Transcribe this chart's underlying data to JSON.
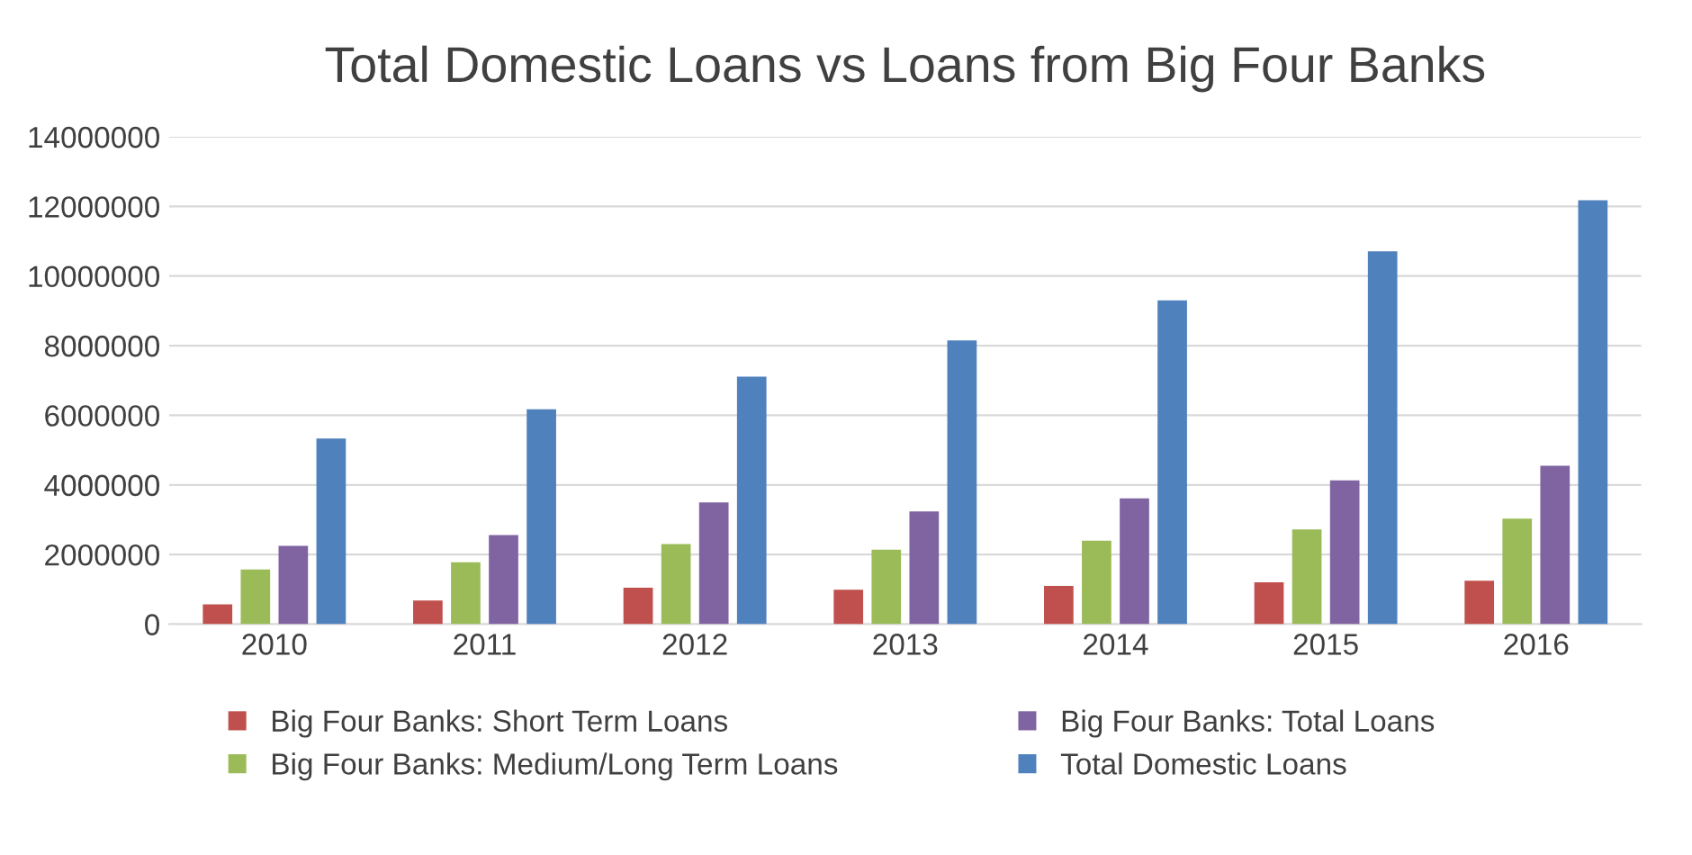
{
  "chart_data": {
    "type": "bar",
    "title": "Total Domestic Loans vs Loans from Big Four Banks",
    "categories": [
      "2010",
      "2011",
      "2012",
      "2013",
      "2014",
      "2015",
      "2016"
    ],
    "series": [
      {
        "name": "Big Four Banks: Short Term Loans",
        "color": "#c0504d",
        "values": [
          570000,
          680000,
          1050000,
          990000,
          1100000,
          1200000,
          1250000
        ]
      },
      {
        "name": "Big Four Banks: Medium/Long Term Loans",
        "color": "#9bbb59",
        "values": [
          1570000,
          1780000,
          2300000,
          2140000,
          2400000,
          2720000,
          3030000
        ]
      },
      {
        "name": "Big Four Banks: Total Loans",
        "color": "#8064a2",
        "values": [
          2250000,
          2560000,
          3500000,
          3240000,
          3610000,
          4130000,
          4550000
        ]
      },
      {
        "name": "Total Domestic Loans",
        "color": "#4f81bd",
        "values": [
          5330000,
          6170000,
          7110000,
          8150000,
          9300000,
          10710000,
          12180000
        ]
      }
    ],
    "ylim": [
      0,
      14000000
    ],
    "yticks": [
      0,
      2000000,
      4000000,
      6000000,
      8000000,
      10000000,
      12000000,
      14000000
    ],
    "grid": "y",
    "legend": "bottom"
  }
}
